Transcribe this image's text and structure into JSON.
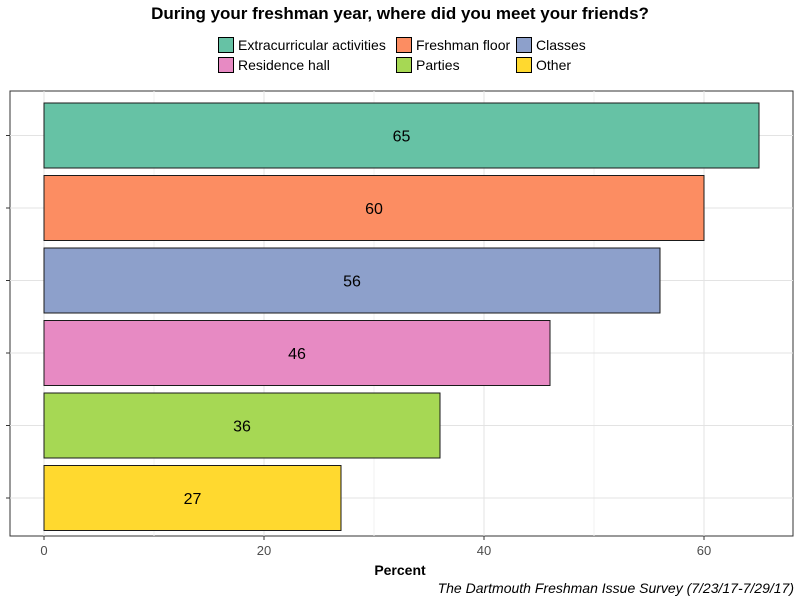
{
  "chart_data": {
    "type": "bar",
    "orientation": "horizontal",
    "title": "During your freshman year, where did you meet your friends?",
    "xlabel": "Percent",
    "ylabel": "",
    "xlim": [
      0,
      68
    ],
    "x_ticks": [
      0,
      20,
      40,
      60
    ],
    "grid": true,
    "legend_placement": "top",
    "categories": [
      "Extracurricular activities",
      "Freshman floor",
      "Classes",
      "Residence hall",
      "Parties",
      "Other"
    ],
    "values": [
      65,
      60,
      56,
      46,
      36,
      27
    ],
    "colors": [
      "#66c2a5",
      "#fc8d62",
      "#8da0cb",
      "#e78ac3",
      "#a6d854",
      "#ffd92f"
    ],
    "caption": "The Dartmouth Freshman Issue Survey (7/23/17-7/29/17)"
  }
}
